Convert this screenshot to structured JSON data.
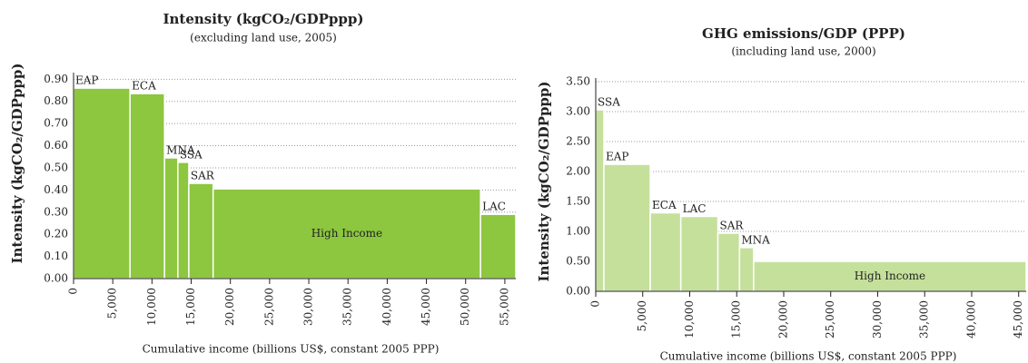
{
  "chart_data": [
    {
      "type": "bar",
      "title": "Intensity (kgCO₂/GDPppp)",
      "subtitle": "(excluding land use, 2005)",
      "ylabel": "Intensity (kgCO₂/GDPppp)",
      "xlabel": "Cumulative income (billions US$, constant 2005 PPP)",
      "categories": [
        "EAP",
        "ECA",
        "MNA",
        "SSA",
        "SAR",
        "High Income",
        "LAC"
      ],
      "values": [
        0.86,
        0.835,
        0.545,
        0.525,
        0.43,
        0.405,
        0.29
      ],
      "widths": [
        7200,
        4400,
        1700,
        1400,
        3100,
        34100,
        4500
      ],
      "color": "#8dc63f",
      "grid": true,
      "xlim": [
        0,
        56400
      ],
      "xticks": [
        0,
        {
          "value": 5000,
          "label": "5,000"
        },
        {
          "value": 10000,
          "label": "10,000"
        },
        {
          "value": 15000,
          "label": "15,000"
        },
        {
          "value": 20000,
          "label": "20,000"
        },
        {
          "value": 25000,
          "label": "25,000"
        },
        {
          "value": 30000,
          "label": "30,000"
        },
        {
          "value": 35000,
          "label": "35,000"
        },
        {
          "value": 40000,
          "label": "40,000"
        },
        {
          "value": 45000,
          "label": "45,000"
        },
        {
          "value": 50000,
          "label": "50,000"
        },
        {
          "value": 55000,
          "label": "55,000"
        }
      ],
      "ylim": [
        0,
        0.93
      ],
      "yticks": [
        {
          "value": 0,
          "label": "0.00"
        },
        {
          "value": 0.1,
          "label": "0.10"
        },
        {
          "value": 0.2,
          "label": "0.20"
        },
        {
          "value": 0.3,
          "label": "0.30"
        },
        {
          "value": 0.4,
          "label": "0.40"
        },
        {
          "value": 0.5,
          "label": "0.50"
        },
        {
          "value": 0.6,
          "label": "0.60"
        },
        {
          "value": 0.7,
          "label": "0.70"
        },
        {
          "value": 0.8,
          "label": "0.80"
        },
        {
          "value": 0.9,
          "label": "0.90"
        }
      ]
    },
    {
      "type": "bar",
      "title": "GHG emissions/GDP (PPP)",
      "subtitle": "(including land use, 2000)",
      "ylabel": "Intensity (kgCO₂/GDPppp)",
      "xlabel": "Cumulative income (billions US$, constant 2005 PPP)",
      "categories": [
        "SSA",
        "EAP",
        "ECA",
        "LAC",
        "SAR",
        "MNA",
        "High Income"
      ],
      "values": [
        3.03,
        2.12,
        1.31,
        1.25,
        0.97,
        0.73,
        0.5
      ],
      "widths": [
        870,
        4930,
        3250,
        3950,
        2300,
        1500,
        29000
      ],
      "color": "#c5e09b",
      "grid": true,
      "xlim": [
        0,
        45800
      ],
      "xticks": [
        0,
        {
          "value": 5000,
          "label": "5,000"
        },
        {
          "value": 10000,
          "label": "10,000"
        },
        {
          "value": 15000,
          "label": "15,000"
        },
        {
          "value": 20000,
          "label": "20,000"
        },
        {
          "value": 25000,
          "label": "25,000"
        },
        {
          "value": 30000,
          "label": "30,000"
        },
        {
          "value": 35000,
          "label": "35,000"
        },
        {
          "value": 40000,
          "label": "40,000"
        },
        {
          "value": 45000,
          "label": "45,000"
        }
      ],
      "ylim": [
        0,
        3.56
      ],
      "yticks": [
        {
          "value": 0,
          "label": "0.00"
        },
        {
          "value": 0.5,
          "label": "0.50"
        },
        {
          "value": 1,
          "label": "1.00"
        },
        {
          "value": 1.5,
          "label": "1.50"
        },
        {
          "value": 2,
          "label": "2.00"
        },
        {
          "value": 2.5,
          "label": "2.50"
        },
        {
          "value": 3,
          "label": "3.00"
        },
        {
          "value": 3.5,
          "label": "3.50"
        }
      ]
    }
  ]
}
